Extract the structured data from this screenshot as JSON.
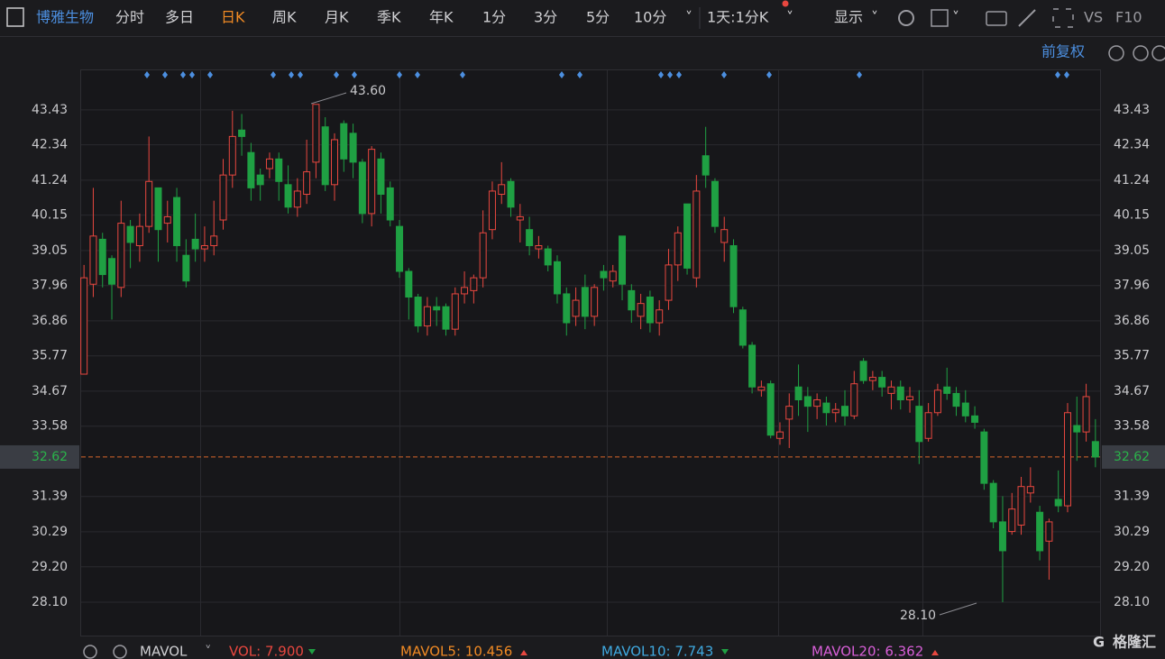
{
  "toolbar": {
    "stock_name": "博雅生物",
    "tabs": [
      "分时",
      "多日",
      "日K",
      "周K",
      "月K",
      "季K",
      "年K",
      "1分",
      "3分",
      "5分",
      "10分"
    ],
    "period_select": "1天:1分K",
    "display": "显示",
    "vs": "VS",
    "f10": "F10"
  },
  "adjust": "前复权",
  "chart_data": {
    "type": "candlestick",
    "open": [
      35.2,
      38.0,
      39.4,
      38.8,
      37.9,
      39.8,
      39.2,
      39.8,
      41.0,
      39.9,
      40.7,
      38.9,
      39.4,
      39.1,
      39.2,
      40.0,
      41.4,
      42.8,
      42.1,
      41.4,
      41.6,
      41.9,
      41.1,
      40.4,
      40.8,
      41.8,
      42.9,
      41.1,
      43.0,
      42.7,
      41.8,
      40.2,
      41.9,
      41.0,
      39.8,
      38.4,
      37.6,
      36.7,
      37.3,
      37.3,
      36.6,
      37.7,
      37.8,
      38.2,
      39.7,
      40.8,
      41.2,
      40.0,
      39.7,
      39.1,
      39.1,
      38.7,
      37.7,
      37.0,
      37.9,
      37.0,
      38.4,
      38.1,
      39.5,
      37.8,
      37.0,
      37.6,
      36.8,
      37.5,
      38.6,
      40.5,
      38.2,
      42.0,
      41.2,
      39.3,
      39.2,
      37.2,
      36.1,
      34.7,
      34.9,
      33.2,
      33.8,
      34.8,
      34.5,
      34.2,
      34.3,
      34.0,
      34.2,
      33.9,
      35.6,
      35.0,
      35.1,
      34.6,
      34.8,
      34.4,
      34.2,
      33.2,
      34.0,
      34.8,
      34.6,
      34.3,
      33.9,
      33.4,
      31.8,
      30.6,
      30.3,
      30.5,
      31.5,
      30.9,
      30.0,
      31.3,
      31.1,
      33.6,
      33.4,
      33.1
    ],
    "high": [
      38.6,
      41.0,
      39.6,
      38.9,
      40.6,
      40.0,
      40.2,
      42.6,
      41.0,
      40.6,
      41.0,
      39.4,
      40.2,
      39.8,
      40.6,
      41.9,
      43.4,
      43.3,
      42.4,
      41.6,
      42.1,
      42.1,
      41.7,
      41.3,
      42.5,
      43.6,
      43.2,
      42.7,
      43.1,
      43.0,
      41.9,
      42.3,
      42.1,
      41.2,
      40.0,
      38.5,
      37.7,
      37.6,
      37.6,
      37.4,
      37.9,
      38.4,
      38.3,
      40.3,
      41.2,
      41.8,
      41.3,
      40.5,
      40.1,
      39.5,
      39.2,
      38.9,
      37.9,
      37.9,
      38.3,
      38.0,
      38.6,
      38.6,
      39.5,
      38.0,
      37.7,
      37.8,
      37.5,
      39.1,
      39.8,
      40.5,
      41.4,
      42.9,
      41.3,
      40.1,
      39.4,
      37.3,
      36.2,
      35.0,
      35.0,
      33.7,
      34.6,
      35.5,
      34.8,
      34.6,
      34.5,
      34.3,
      34.7,
      35.3,
      35.7,
      35.3,
      35.3,
      35.0,
      35.0,
      34.8,
      34.7,
      34.3,
      34.9,
      35.4,
      34.8,
      34.7,
      34.2,
      33.5,
      31.9,
      31.4,
      31.5,
      32.0,
      32.3,
      31.1,
      30.7,
      32.2,
      34.3,
      34.5,
      34.9,
      33.8
    ],
    "low": [
      35.2,
      37.6,
      37.9,
      36.9,
      37.6,
      38.5,
      38.7,
      39.6,
      38.7,
      39.3,
      38.7,
      37.9,
      38.7,
      38.7,
      38.9,
      39.7,
      41.0,
      42.0,
      40.6,
      40.6,
      41.3,
      40.6,
      40.2,
      40.1,
      40.5,
      41.3,
      40.9,
      40.6,
      41.5,
      41.3,
      39.9,
      39.8,
      40.2,
      39.8,
      38.2,
      36.9,
      36.5,
      36.4,
      36.7,
      36.4,
      36.4,
      37.4,
      37.4,
      37.9,
      39.4,
      40.5,
      40.1,
      39.3,
      38.9,
      38.8,
      38.4,
      37.4,
      36.4,
      36.7,
      36.6,
      36.7,
      37.8,
      37.9,
      37.5,
      36.8,
      36.6,
      36.5,
      36.4,
      37.2,
      38.1,
      38.3,
      37.9,
      41.0,
      39.6,
      38.7,
      37.1,
      36.0,
      34.6,
      34.5,
      33.2,
      33.0,
      32.9,
      33.9,
      33.4,
      33.8,
      33.6,
      33.7,
      33.6,
      33.8,
      34.9,
      34.7,
      34.5,
      34.1,
      34.1,
      34.0,
      32.4,
      33.1,
      33.9,
      34.4,
      33.9,
      33.7,
      33.5,
      31.6,
      30.4,
      28.1,
      30.2,
      30.2,
      31.2,
      29.4,
      28.8,
      30.9,
      30.9,
      32.5,
      33.1,
      32.3
    ],
    "close": [
      38.2,
      39.5,
      38.3,
      38.0,
      39.9,
      39.3,
      39.8,
      41.2,
      39.7,
      40.1,
      39.2,
      38.1,
      39.1,
      39.2,
      39.5,
      41.4,
      42.6,
      42.6,
      41.0,
      41.1,
      41.9,
      41.2,
      40.4,
      40.9,
      41.5,
      43.6,
      41.1,
      42.5,
      41.9,
      41.8,
      40.2,
      42.2,
      40.8,
      40.0,
      38.4,
      37.6,
      36.7,
      37.3,
      37.2,
      36.6,
      37.7,
      37.9,
      38.2,
      39.6,
      40.9,
      41.1,
      40.4,
      40.1,
      39.2,
      39.2,
      38.6,
      37.7,
      36.8,
      37.5,
      37.0,
      37.9,
      38.2,
      38.4,
      38.0,
      37.2,
      37.4,
      36.8,
      37.2,
      38.6,
      39.6,
      38.5,
      40.9,
      41.4,
      39.8,
      39.7,
      37.3,
      36.1,
      34.8,
      34.8,
      33.3,
      33.4,
      34.2,
      34.4,
      34.2,
      34.4,
      34.0,
      34.1,
      33.9,
      34.9,
      35.0,
      35.1,
      34.8,
      34.8,
      34.4,
      34.5,
      33.1,
      34.0,
      34.7,
      34.6,
      34.2,
      33.9,
      33.7,
      31.8,
      30.6,
      29.7,
      31.0,
      31.7,
      31.7,
      29.7,
      30.6,
      31.1,
      34.0,
      33.4,
      34.5,
      32.62
    ],
    "ylim": [
      27.06,
      44.66
    ],
    "yticks": [
      43.43,
      42.34,
      41.24,
      40.15,
      39.05,
      37.96,
      36.86,
      35.77,
      34.67,
      33.58,
      31.39,
      30.29,
      {
        "value": 29.2,
        "label": "29.20"
      },
      {
        "value": 28.1,
        "label": "28.10"
      }
    ],
    "current_price": 32.62,
    "high_label": "43.60",
    "low_label": "28.10",
    "up_color": "#e8473f",
    "down_color": "#1fa043",
    "price_line_color": "#d8672a"
  },
  "indicator_bar": {
    "name": "MAVOL",
    "vol": "VOL: 7.900",
    "mavol5": "MAVOL5: 10.456",
    "mavol10": "MAVOL10: 7.743",
    "mavol20": "MAVOL20: 6.362"
  },
  "brand": "格隆汇"
}
